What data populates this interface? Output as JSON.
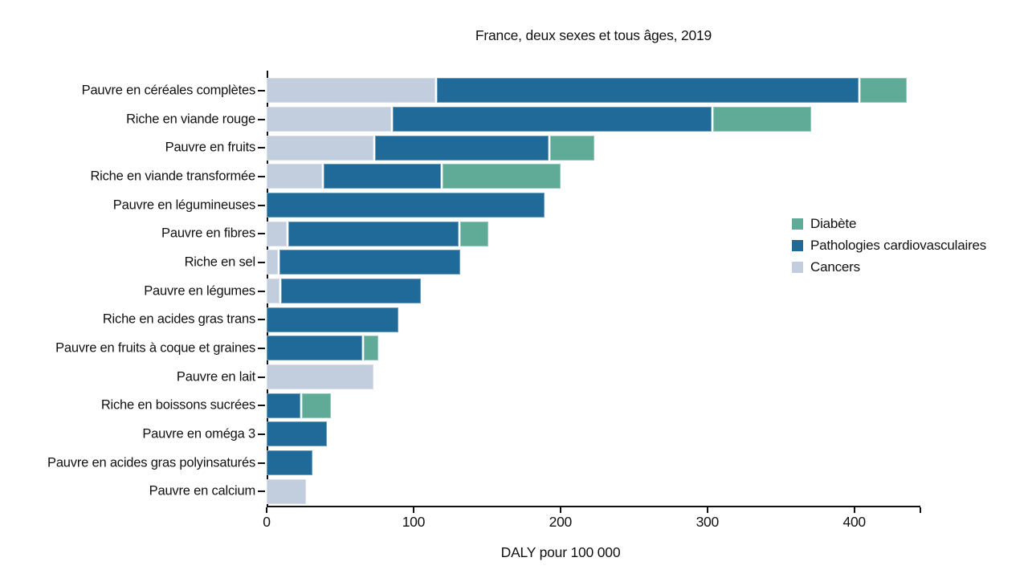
{
  "chart_data": {
    "type": "bar",
    "orientation": "horizontal",
    "stacked": true,
    "title": "France, deux sexes et tous âges, 2019",
    "xlabel": "DALY pour 100 000",
    "xlim": [
      0,
      445
    ],
    "xticks": [
      0,
      100,
      200,
      300,
      400
    ],
    "grid": false,
    "legend_position": "right-inside",
    "categories": [
      "Pauvre en céréales complètes",
      "Riche en viande rouge",
      "Pauvre en fruits",
      "Riche en viande transformée",
      "Pauvre en légumineuses",
      "Pauvre en fibres",
      "Riche en sel",
      "Pauvre en légumes",
      "Riche en acides gras trans",
      "Pauvre en fruits à coque et graines",
      "Pauvre en lait",
      "Riche en boissons sucrées",
      "Pauvre en oméga 3",
      "Pauvre en acides gras polyinsaturés",
      "Pauvre en calcium"
    ],
    "series": [
      {
        "name": "Cancers",
        "color": "#c2cdde",
        "values": [
          116,
          86,
          74,
          39,
          0,
          15,
          9,
          10,
          0,
          0,
          74,
          0,
          0,
          0,
          28
        ]
      },
      {
        "name": "Pathologies cardiovasculaires",
        "color": "#1f6a98",
        "values": [
          288,
          218,
          119,
          81,
          190,
          117,
          124,
          96,
          91,
          66,
          0,
          24,
          42,
          32,
          0
        ]
      },
      {
        "name": "Diabète",
        "color": "#5fab97",
        "values": [
          33,
          68,
          31,
          81,
          0,
          20,
          0,
          0,
          0,
          11,
          0,
          21,
          0,
          0,
          0
        ]
      }
    ],
    "legend_order": [
      "Diabète",
      "Pathologies cardiovasculaires",
      "Cancers"
    ]
  }
}
